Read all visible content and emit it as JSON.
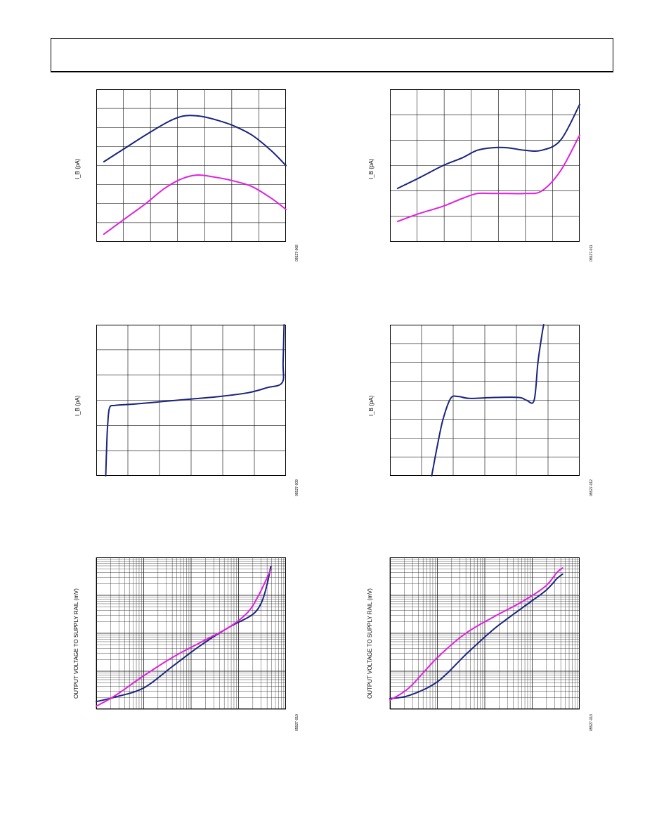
{
  "header": {
    "title": ""
  },
  "colors": {
    "navy": "#1a237e",
    "magenta": "#e020e0",
    "grid": "#000000"
  },
  "chart_data": [
    {
      "id": "c1",
      "type": "line",
      "ylabel": "I_B (pA)",
      "figure_number": "05527-008",
      "xlim": [
        0,
        10
      ],
      "ylim": [
        0,
        8
      ],
      "grid": {
        "cols": 7,
        "rows": 8
      },
      "series": [
        {
          "color": "navy",
          "x": [
            0.4,
            1.5,
            2.6,
            3.8,
            4.6,
            5.4,
            6.3,
            7.2,
            8.2,
            9.2,
            10.0
          ],
          "y": [
            4.2,
            4.9,
            5.6,
            6.3,
            6.6,
            6.6,
            6.4,
            6.1,
            5.6,
            4.8,
            4.0
          ]
        },
        {
          "color": "magenta",
          "x": [
            0.4,
            1.5,
            2.6,
            3.6,
            4.5,
            5.3,
            6.2,
            7.2,
            8.2,
            9.2,
            10.0
          ],
          "y": [
            0.4,
            1.2,
            2.0,
            2.8,
            3.3,
            3.5,
            3.4,
            3.2,
            2.9,
            2.3,
            1.7
          ]
        }
      ]
    },
    {
      "id": "c2",
      "type": "line",
      "ylabel": "I_B (pA)",
      "figure_number": "05527-011",
      "xlim": [
        0,
        10
      ],
      "ylim": [
        0,
        6
      ],
      "grid": {
        "cols": 7,
        "rows": 6
      },
      "series": [
        {
          "color": "navy",
          "x": [
            0.4,
            1.5,
            2.8,
            3.8,
            4.6,
            5.4,
            6.2,
            7.1,
            8.0,
            9.0,
            10.0
          ],
          "y": [
            2.1,
            2.5,
            3.0,
            3.3,
            3.6,
            3.7,
            3.7,
            3.6,
            3.6,
            4.0,
            5.4
          ]
        },
        {
          "color": "magenta",
          "x": [
            0.4,
            1.5,
            2.8,
            3.8,
            4.6,
            5.4,
            6.2,
            7.1,
            8.0,
            9.0,
            10.0
          ],
          "y": [
            0.8,
            1.1,
            1.4,
            1.7,
            1.9,
            1.9,
            1.9,
            1.9,
            2.0,
            2.8,
            4.2
          ]
        }
      ]
    },
    {
      "id": "c3",
      "type": "line",
      "ylabel": "I_B (pA)",
      "figure_number": "05527-009",
      "xlim": [
        0,
        10
      ],
      "ylim": [
        0,
        6
      ],
      "grid": {
        "cols": 6,
        "rows": 6
      },
      "series": [
        {
          "color": "navy",
          "x": [
            0.5,
            0.55,
            0.6,
            0.7,
            1.0,
            2.0,
            3.5,
            5.0,
            6.5,
            8.0,
            9.0,
            9.8,
            9.85,
            9.9
          ],
          "y": [
            0.0,
            1.2,
            2.0,
            2.7,
            2.8,
            2.85,
            2.95,
            3.05,
            3.15,
            3.3,
            3.5,
            3.7,
            4.5,
            6.0
          ]
        }
      ]
    },
    {
      "id": "c4",
      "type": "line",
      "ylabel": "I_B (pA)",
      "figure_number": "05527-012",
      "xlim": [
        0,
        10
      ],
      "ylim": [
        0,
        8
      ],
      "grid": {
        "cols": 6,
        "rows": 8
      },
      "series": [
        {
          "color": "navy",
          "x": [
            2.2,
            2.5,
            2.8,
            3.2,
            3.6,
            4.2,
            5.5,
            6.8,
            7.2,
            7.6,
            7.8,
            8.0,
            8.1
          ],
          "y": [
            0.0,
            1.6,
            3.0,
            4.1,
            4.2,
            4.1,
            4.15,
            4.15,
            4.0,
            4.0,
            6.0,
            7.4,
            8.0
          ]
        }
      ]
    },
    {
      "id": "c5",
      "type": "line",
      "ylabel": "OUTPUT VOLTAGE TO SUPPLY RAIL (mV)",
      "figure_number": "05527-010",
      "xlim": [
        0,
        10
      ],
      "ylim": [
        0,
        10
      ],
      "grid": {
        "decades_x": 4,
        "decades_y": 4
      },
      "series": [
        {
          "color": "navy",
          "x": [
            0.0,
            1.0,
            2.5,
            4.0,
            5.5,
            7.0,
            8.2,
            8.7,
            9.0,
            9.2
          ],
          "y": [
            0.5,
            0.8,
            1.4,
            2.8,
            4.2,
            5.4,
            6.2,
            7.0,
            8.2,
            9.4
          ]
        },
        {
          "color": "magenta",
          "x": [
            0.0,
            1.0,
            2.5,
            4.0,
            5.5,
            7.0,
            8.0,
            8.6,
            9.2
          ],
          "y": [
            0.2,
            0.9,
            2.2,
            3.4,
            4.4,
            5.4,
            6.4,
            7.6,
            9.2
          ]
        }
      ]
    },
    {
      "id": "c6",
      "type": "line",
      "ylabel": "OUTPUT VOLTAGE TO SUPPLY RAIL (mV)",
      "figure_number": "05527-013",
      "xlim": [
        0,
        10
      ],
      "ylim": [
        0,
        10
      ],
      "grid": {
        "decades_x": 4,
        "decades_y": 4
      },
      "series": [
        {
          "color": "navy",
          "x": [
            0.0,
            1.0,
            2.5,
            4.0,
            5.5,
            7.0,
            8.2,
            8.8,
            9.1
          ],
          "y": [
            0.7,
            0.9,
            1.8,
            3.6,
            5.3,
            6.7,
            7.8,
            8.6,
            8.9
          ]
        },
        {
          "color": "magenta",
          "x": [
            0.0,
            1.0,
            2.5,
            4.0,
            5.5,
            7.0,
            8.2,
            8.8,
            9.1
          ],
          "y": [
            0.6,
            1.4,
            3.4,
            5.0,
            6.1,
            7.1,
            8.1,
            9.0,
            9.3
          ]
        }
      ]
    }
  ]
}
